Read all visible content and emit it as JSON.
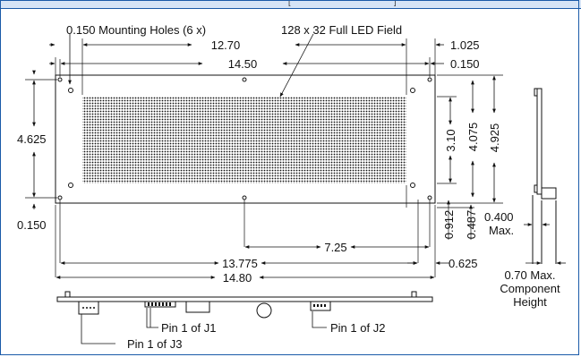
{
  "labels": {
    "mounting_holes": "0.150 Mounting Holes (6 x)",
    "led_field": "128 x 32 Full LED Field",
    "pin_j1": "Pin 1 of  J1",
    "pin_j2": "Pin 1 of  J2",
    "pin_j3": "Pin 1 of  J3",
    "max_040": "0.400",
    "max_040_unit": "Max.",
    "comp_height_1": "0.70 Max.",
    "comp_height_2": "Component",
    "comp_height_3": "Height"
  },
  "dimensions": {
    "d_12_70": "12.70",
    "d_14_50": "14.50",
    "d_1_025": "1.025",
    "d_0_150_top": "0.150",
    "d_4_625": "4.625",
    "d_3_10": "3.10",
    "d_4_075": "4.075",
    "d_4_925": "4.925",
    "d_0_150_left": "0.150",
    "d_0_912": "0.912",
    "d_0_487": "0.487",
    "d_7_25": "7.25",
    "d_13_775": "13.775",
    "d_0_625": "0.625",
    "d_14_80": "14.80"
  },
  "colors": {
    "frame": "#1a5aa8",
    "header": "#d6e4f6",
    "line": "#111111"
  }
}
